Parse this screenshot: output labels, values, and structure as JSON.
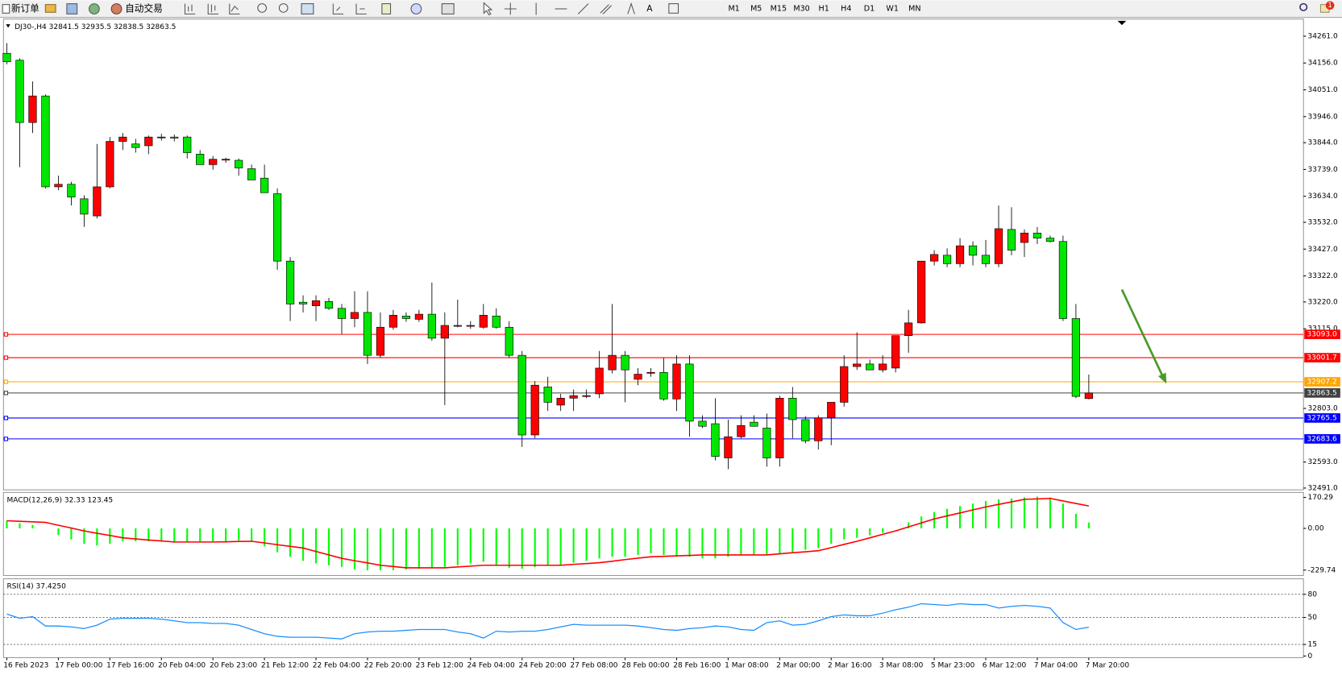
{
  "toolbar": {
    "new_order": "新订单",
    "auto_trading": "自动交易",
    "timeframes": [
      "M1",
      "M5",
      "M15",
      "M30",
      "H1",
      "H4",
      "D1",
      "W1",
      "MN"
    ],
    "notification": "1"
  },
  "chart_data": [
    {
      "type": "candlestick",
      "title": "DJ30-,H4  32841.5 32935.5 32838.5 32863.5",
      "up_color": "#ff0000",
      "down_color": "#00e600",
      "x": [
        "16 Feb 2023",
        null,
        null,
        null,
        "17 Feb 00:00",
        null,
        null,
        null,
        "17 Feb 16:00",
        null,
        null,
        null,
        "20 Feb 04:00",
        null,
        null,
        null,
        "20 Feb 23:00",
        null,
        null,
        null,
        "21 Feb 12:00",
        null,
        null,
        null,
        "22 Feb 04:00",
        null,
        null,
        null,
        "22 Feb 20:00",
        null,
        null,
        null,
        "23 Feb 12:00",
        null,
        null,
        null,
        "24 Feb 04:00",
        null,
        null,
        null,
        "24 Feb 20:00",
        null,
        null,
        null,
        "27 Feb 08:00",
        null,
        null,
        null,
        "28 Feb 00:00",
        null,
        null,
        null,
        "28 Feb 16:00",
        null,
        null,
        null,
        "1 Mar 08:00",
        null,
        null,
        null,
        "2 Mar 00:00",
        null,
        null,
        null,
        "2 Mar 16:00",
        null,
        null,
        null,
        "3 Mar 08:00",
        null,
        null,
        null,
        "5 Mar 23:00",
        null,
        null,
        null,
        "6 Mar 12:00",
        null,
        null,
        null,
        "7 Mar 04:00",
        null,
        null,
        null,
        "7 Mar 20:00"
      ],
      "open": [
        34194,
        34167,
        33923,
        34027,
        33671,
        33681,
        33624,
        33557,
        33671,
        33849,
        33839,
        33832,
        33866,
        33866,
        33866,
        33799,
        33758,
        33779,
        33775,
        33742,
        33705,
        33644,
        33380,
        33219,
        33205,
        33222,
        33195,
        33155,
        33179,
        33011,
        33121,
        33165,
        33152,
        33172,
        33078,
        33128,
        33128,
        33121,
        33165,
        33121,
        33011,
        32699,
        32887,
        32816,
        32843,
        32853,
        32860,
        32954,
        33011,
        32917,
        32944,
        32944,
        32840,
        32977,
        32753,
        32743,
        32609,
        32692,
        32749,
        32726,
        32609,
        32843,
        32759,
        32676,
        32766,
        32827,
        32967,
        32977,
        32954,
        32961,
        33088,
        33138,
        33380,
        33403,
        33370,
        33440,
        33403,
        33370,
        33504,
        33453,
        33490,
        33470,
        33457,
        33155,
        32841.5
      ],
      "high": [
        34234,
        34174,
        34084,
        34033,
        33715,
        33691,
        33638,
        33839,
        33866,
        33882,
        33859,
        33872,
        33879,
        33876,
        33872,
        33815,
        33792,
        33785,
        33782,
        33758,
        33758,
        33665,
        33396,
        33246,
        33246,
        33236,
        33212,
        33262,
        33262,
        33179,
        33189,
        33179,
        33189,
        33296,
        33179,
        33229,
        33145,
        33212,
        33195,
        33145,
        33028,
        32910,
        32927,
        32860,
        32877,
        32877,
        33028,
        33212,
        33028,
        32961,
        32961,
        33001,
        33011,
        33011,
        32776,
        32843,
        32759,
        32776,
        32776,
        32783,
        32853,
        32887,
        32773,
        32776,
        32827,
        33011,
        33101,
        32994,
        33011,
        33088,
        33189,
        33380,
        33423,
        33430,
        33470,
        33457,
        33463,
        33598,
        33591,
        33504,
        33514,
        33480,
        33480,
        33212,
        32935.5
      ],
      "low": [
        34151,
        33748,
        33882,
        33665,
        33658,
        33598,
        33514,
        33547,
        33665,
        33815,
        33805,
        33799,
        33852,
        33849,
        33782,
        33758,
        33738,
        33765,
        33715,
        33698,
        33648,
        33346,
        33145,
        33179,
        33145,
        33189,
        33095,
        33121,
        32977,
        33001,
        33111,
        33142,
        33142,
        33068,
        32816,
        33121,
        33115,
        33115,
        33115,
        33001,
        32652,
        32686,
        32793,
        32793,
        32793,
        32843,
        32843,
        32940,
        32827,
        32894,
        32927,
        32833,
        32793,
        32692,
        32726,
        32599,
        32565,
        32686,
        32733,
        32575,
        32575,
        32686,
        32666,
        32642,
        32659,
        32810,
        32954,
        32954,
        32944,
        32944,
        33021,
        33135,
        33363,
        33356,
        33356,
        33363,
        33356,
        33356,
        33403,
        33396,
        33447,
        33453,
        33145,
        32843,
        32838.5
      ],
      "close": [
        34161,
        33923,
        34027,
        33671,
        33681,
        33631,
        33564,
        33671,
        33849,
        33866,
        33825,
        33866,
        33866,
        33862,
        33805,
        33758,
        33779,
        33779,
        33745,
        33698,
        33648,
        33380,
        33212,
        33212,
        33225,
        33195,
        33155,
        33179,
        33011,
        33121,
        33168,
        33155,
        33172,
        33078,
        33128,
        33128,
        33128,
        33168,
        33121,
        33011,
        32699,
        32894,
        32827,
        32843,
        32853,
        32853,
        32961,
        33011,
        32954,
        32937,
        32944,
        32840,
        32977,
        32753,
        32733,
        32615,
        32692,
        32736,
        32733,
        32609,
        32843,
        32759,
        32676,
        32766,
        32827,
        32967,
        32977,
        32954,
        32977,
        33088,
        33138,
        33380,
        33406,
        33370,
        33440,
        33403,
        33370,
        33507,
        33423,
        33490,
        33470,
        33457,
        33155,
        32850,
        32863.5
      ],
      "ylim": [
        32484,
        34328
      ],
      "yticks": [
        {
          "value": 34261,
          "label": "34261.0"
        },
        {
          "value": 34156,
          "label": "34156.0"
        },
        {
          "value": 34051,
          "label": "34051.0"
        },
        {
          "value": 33946,
          "label": "33946.0"
        },
        {
          "value": 33844,
          "label": "33844.0"
        },
        {
          "value": 33739,
          "label": "33739.0"
        },
        {
          "value": 33634,
          "label": "33634.0"
        },
        {
          "value": 33532,
          "label": "33532.0"
        },
        {
          "value": 33427,
          "label": "33427.0"
        },
        {
          "value": 33322,
          "label": "33322.0"
        },
        {
          "value": 33220,
          "label": "33220.0"
        },
        {
          "value": 33115,
          "label": "33115.0"
        },
        {
          "value": 32803,
          "label": "32803.0"
        },
        {
          "value": 32593,
          "label": "32593.0"
        },
        {
          "value": 32491,
          "label": "32491.0"
        }
      ],
      "levels": [
        {
          "value": 33093,
          "label": "33093.0",
          "color": "#ff0000"
        },
        {
          "value": 33001.7,
          "label": "33001.7",
          "color": "#ff0000"
        },
        {
          "value": 32907.2,
          "label": "32907.2",
          "color": "#ffa500"
        },
        {
          "value": 32863.5,
          "label": "32863.5",
          "color": "#404040"
        },
        {
          "value": 32765.5,
          "label": "32765.5",
          "color": "#0000ff"
        },
        {
          "value": 32683.6,
          "label": "32683.6",
          "color": "#0000ff"
        }
      ]
    },
    {
      "type": "macd",
      "title": "MACD(12,26,9) 32.33 123.45",
      "ylim": [
        -259,
        198
      ],
      "yticks": [
        170.29,
        {
          "value": 0,
          "label": "0.00"
        },
        -229.74
      ],
      "series": [
        {
          "kind": "bar",
          "color": "#00ff00",
          "values": [
            42,
            28,
            19,
            0,
            -38,
            -61,
            -85,
            -94,
            -85,
            -71,
            -71,
            -71,
            -71,
            -71,
            -71,
            -71,
            -71,
            -71,
            -66,
            -71,
            -99,
            -132,
            -156,
            -179,
            -193,
            -203,
            -212,
            -226,
            -231,
            -231,
            -231,
            -226,
            -222,
            -217,
            -212,
            -203,
            -193,
            -184,
            -203,
            -217,
            -222,
            -212,
            -203,
            -203,
            -189,
            -179,
            -165,
            -156,
            -156,
            -146,
            -137,
            -146,
            -156,
            -156,
            -165,
            -165,
            -156,
            -146,
            -146,
            -146,
            -142,
            -132,
            -118,
            -108,
            -85,
            -61,
            -52,
            -38,
            -24,
            0,
            33,
            66,
            90,
            108,
            123,
            137,
            151,
            160,
            165,
            170,
            175,
            170,
            137,
            80,
            32.33
          ]
        },
        {
          "kind": "line",
          "color": "#ff0000",
          "values": [
            42,
            39,
            36,
            33,
            17,
            2,
            -14,
            -27,
            -39,
            -52,
            -58,
            -64,
            -69,
            -75,
            -75,
            -75,
            -75,
            -74,
            -72,
            -71,
            -80,
            -90,
            -99,
            -108,
            -127,
            -146,
            -165,
            -178,
            -190,
            -203,
            -210,
            -217,
            -217,
            -217,
            -217,
            -212,
            -208,
            -203,
            -203,
            -203,
            -203,
            -203,
            -203,
            -203,
            -198,
            -194,
            -189,
            -181,
            -172,
            -164,
            -156,
            -154,
            -151,
            -149,
            -146,
            -146,
            -146,
            -146,
            -146,
            -146,
            -140,
            -134,
            -129,
            -123,
            -106,
            -88,
            -71,
            -52,
            -33,
            -14,
            8,
            30,
            52,
            69,
            85,
            102,
            118,
            132,
            146,
            160,
            162,
            165,
            151,
            137,
            123.45
          ]
        }
      ]
    },
    {
      "type": "line",
      "title": "RSI(14) 37.4250",
      "ylim": [
        -2,
        100
      ],
      "yticks": [
        80,
        50,
        15,
        0
      ],
      "levels": [
        80,
        50,
        15
      ],
      "series": [
        {
          "color": "#1e90ff",
          "values": [
            54.4,
            48.9,
            51.1,
            38.9,
            38.9,
            37.8,
            35.6,
            40,
            47.8,
            48.9,
            48.9,
            48.9,
            47.8,
            45.6,
            43.3,
            43.3,
            42.2,
            42.2,
            40,
            34.4,
            28.9,
            25.6,
            24.4,
            24.4,
            24.4,
            23.3,
            22.2,
            28.9,
            31.1,
            32.2,
            32.2,
            33.3,
            34.4,
            34.4,
            34.4,
            31.1,
            28.9,
            23.3,
            32.2,
            31.1,
            32.2,
            32.2,
            34.4,
            37.8,
            41.1,
            40,
            40,
            40,
            40,
            38.9,
            36.7,
            34.4,
            33.3,
            35.6,
            36.7,
            38.9,
            37.8,
            34.4,
            33.3,
            43.3,
            45.6,
            40,
            41.1,
            45.6,
            51.1,
            53.3,
            52.2,
            52.2,
            55.6,
            60,
            63.3,
            67.8,
            66.7,
            65.6,
            67.8,
            66.7,
            66.7,
            62.2,
            64.4,
            65.6,
            64.4,
            62.2,
            43.3,
            34.4,
            37.425
          ]
        }
      ]
    }
  ]
}
